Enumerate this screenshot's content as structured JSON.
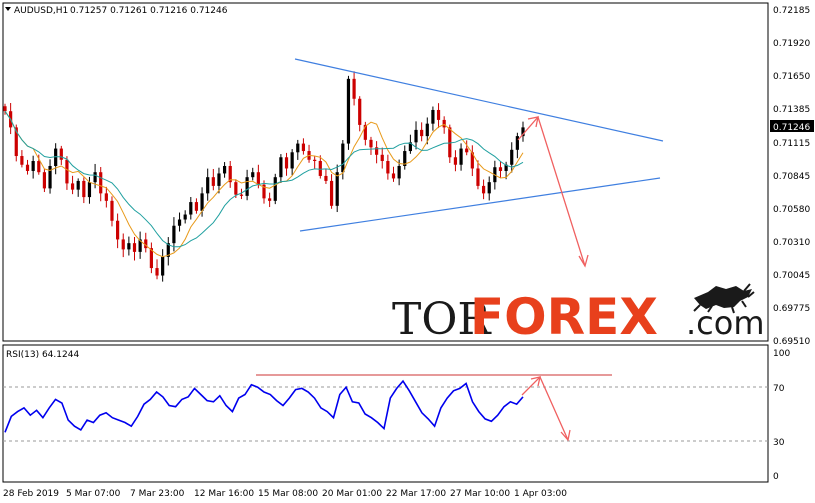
{
  "header": {
    "symbol": "AUDUSD,H1",
    "ohlc": "0.71257 0.71261 0.71216 0.71246"
  },
  "price_axis": {
    "ticks": [
      "0.72185",
      "0.71920",
      "0.71650",
      "0.71385",
      "0.71115",
      "0.70845",
      "0.70580",
      "0.70310",
      "0.70045",
      "0.69775",
      "0.69510"
    ],
    "current_price": "0.71246"
  },
  "rsi": {
    "label": "RSI(13) 64.1244",
    "ticks": [
      "100",
      "70",
      "30",
      "0"
    ]
  },
  "time_axis": {
    "labels": [
      "28 Feb 2019",
      "5 Mar 07:00",
      "7 Mar 23:00",
      "12 Mar 16:00",
      "15 Mar 08:00",
      "20 Mar 01:00",
      "22 Mar 17:00",
      "27 Mar 10:00",
      "1 Apr 03:00"
    ]
  },
  "logo": {
    "part1": "TOR",
    "part2": "FOREX",
    "part3": ".com"
  },
  "colors": {
    "bull": "#000000",
    "bear": "#cc0000",
    "ma_fast": "#e89a1a",
    "ma_slow": "#20a0a0",
    "trendline": "#3f7fe0",
    "rsi_line": "#0000ee",
    "arrow": "#f06060",
    "resistance": "#cc3333"
  },
  "chart_data": {
    "type": "candlestick",
    "price_range": [
      0.6951,
      0.72185
    ],
    "rsi_range": [
      0,
      100
    ],
    "closes": [
      0.7138,
      0.7125,
      0.7102,
      0.7095,
      0.709,
      0.7098,
      0.7089,
      0.7076,
      0.7094,
      0.7108,
      0.7099,
      0.708,
      0.7075,
      0.7082,
      0.7069,
      0.7081,
      0.7089,
      0.7072,
      0.7066,
      0.705,
      0.7035,
      0.7027,
      0.7032,
      0.7025,
      0.7035,
      0.7028,
      0.7012,
      0.7006,
      0.7021,
      0.7032,
      0.7046,
      0.7051,
      0.7055,
      0.7065,
      0.7058,
      0.7072,
      0.7085,
      0.7078,
      0.7088,
      0.7094,
      0.7081,
      0.7071,
      0.707,
      0.7085,
      0.7089,
      0.7079,
      0.7068,
      0.7066,
      0.7085,
      0.7101,
      0.7092,
      0.7105,
      0.7112,
      0.7106,
      0.7099,
      0.7098,
      0.7086,
      0.7082,
      0.7062,
      0.7089,
      0.7112,
      0.7164,
      0.7148,
      0.7127,
      0.7115,
      0.7109,
      0.7103,
      0.7098,
      0.7088,
      0.7084,
      0.7094,
      0.7106,
      0.7113,
      0.7123,
      0.7118,
      0.7128,
      0.7139,
      0.7131,
      0.7125,
      0.7101,
      0.7095,
      0.7108,
      0.7105,
      0.7092,
      0.7078,
      0.7072,
      0.7081,
      0.7093,
      0.709,
      0.7095,
      0.7107,
      0.7118,
      0.7125
    ],
    "rsi": [
      35,
      48,
      52,
      55,
      49,
      53,
      47,
      55,
      62,
      59,
      45,
      40,
      37,
      45,
      43,
      49,
      51,
      47,
      45,
      43,
      40,
      48,
      58,
      62,
      68,
      64,
      57,
      56,
      62,
      64,
      71,
      66,
      61,
      60,
      65,
      57,
      52,
      63,
      66,
      74,
      72,
      68,
      66,
      61,
      57,
      63,
      70,
      71,
      68,
      63,
      55,
      52,
      47,
      66,
      72,
      60,
      59,
      50,
      47,
      43,
      38,
      63,
      71,
      77,
      69,
      60,
      51,
      46,
      40,
      55,
      63,
      69,
      71,
      75,
      60,
      52,
      46,
      44,
      49,
      56,
      60,
      58,
      64
    ],
    "series": [
      {
        "name": "ma_fast"
      },
      {
        "name": "ma_slow"
      }
    ]
  }
}
